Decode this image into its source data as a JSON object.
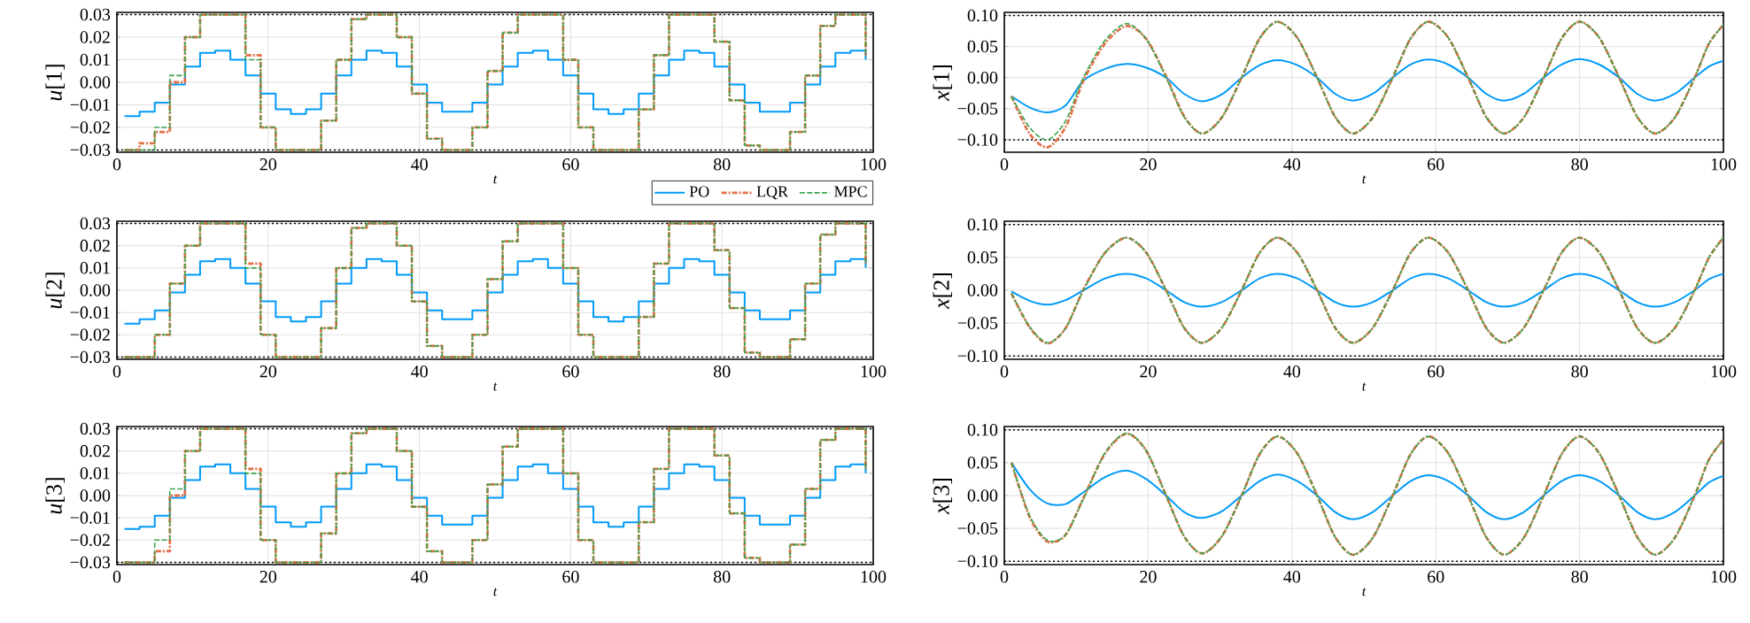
{
  "chart_data": [
    {
      "type": "step",
      "xlabel": "t",
      "ylabel": "*u*[1]",
      "xlim": [
        0,
        100
      ],
      "xticks": [
        0,
        20,
        40,
        60,
        80,
        100
      ],
      "ylim": [
        -0.031,
        0.031
      ],
      "yticks": [
        {
          "value": -0.03,
          "label": "−0.03"
        },
        {
          "value": -0.02,
          "label": "−0.02"
        },
        {
          "value": -0.01,
          "label": "−0.01"
        },
        {
          "value": 0,
          "label": "0.00"
        },
        0.01,
        0.02,
        0.03
      ],
      "grid": true,
      "legend": "bottom right",
      "marker": "none",
      "ref_lines": [
        {
          "axis": "y",
          "value": 0.03,
          "line_style": "dotted",
          "color": "#000000"
        },
        {
          "axis": "y",
          "value": -0.03,
          "line_style": "dotted",
          "color": "#000000"
        }
      ],
      "x": [
        1,
        3,
        5,
        7,
        9,
        11,
        13,
        15,
        17,
        19,
        21,
        23,
        25,
        27,
        29,
        31,
        33,
        35,
        37,
        39,
        41,
        43,
        45,
        47,
        49,
        51,
        53,
        55,
        57,
        59,
        61,
        63,
        65,
        67,
        69,
        71,
        73,
        75,
        77,
        79,
        81,
        83,
        85,
        87,
        89,
        91,
        93,
        95,
        97,
        99
      ],
      "series": [
        {
          "name": "PO",
          "color": "#009af9",
          "line_style": "solid",
          "values": [
            -0.015,
            -0.013,
            -0.009,
            -0.001,
            0.007,
            0.013,
            0.014,
            0.01,
            0.003,
            -0.005,
            -0.012,
            -0.014,
            -0.012,
            -0.005,
            0.003,
            0.01,
            0.014,
            0.013,
            0.007,
            -0.001,
            -0.009,
            -0.013,
            -0.013,
            -0.009,
            -0.001,
            0.007,
            0.013,
            0.014,
            0.01,
            0.003,
            -0.005,
            -0.012,
            -0.014,
            -0.012,
            -0.005,
            0.003,
            0.01,
            0.014,
            0.013,
            0.007,
            -0.001,
            -0.009,
            -0.013,
            -0.013,
            -0.009,
            -0.001,
            0.007,
            0.013,
            0.014,
            0.01
          ]
        },
        {
          "name": "LQR",
          "color": "#e26f46",
          "line_style": "dashdot",
          "values": [
            -0.03,
            -0.027,
            -0.022,
            0.0,
            0.02,
            0.03,
            0.03,
            0.03,
            0.012,
            -0.02,
            -0.03,
            -0.03,
            -0.03,
            -0.017,
            0.01,
            0.028,
            0.03,
            0.03,
            0.02,
            -0.005,
            -0.025,
            -0.03,
            -0.03,
            -0.02,
            0.005,
            0.022,
            0.03,
            0.03,
            0.03,
            0.01,
            -0.02,
            -0.03,
            -0.03,
            -0.03,
            -0.012,
            0.012,
            0.03,
            0.03,
            0.03,
            0.018,
            -0.008,
            -0.028,
            -0.03,
            -0.03,
            -0.022,
            0.003,
            0.025,
            0.03,
            0.03,
            0.012
          ]
        },
        {
          "name": "MPC",
          "color": "#3da44d",
          "line_style": "dashed",
          "values": [
            -0.03,
            -0.03,
            -0.02,
            0.003,
            0.02,
            0.03,
            0.03,
            0.03,
            0.01,
            -0.02,
            -0.03,
            -0.03,
            -0.03,
            -0.017,
            0.01,
            0.028,
            0.03,
            0.03,
            0.02,
            -0.005,
            -0.025,
            -0.03,
            -0.03,
            -0.02,
            0.005,
            0.022,
            0.03,
            0.03,
            0.03,
            0.01,
            -0.02,
            -0.03,
            -0.03,
            -0.03,
            -0.012,
            0.012,
            0.03,
            0.03,
            0.03,
            0.018,
            -0.008,
            -0.028,
            -0.03,
            -0.03,
            -0.022,
            0.003,
            0.025,
            0.03,
            0.03,
            0.012
          ]
        }
      ]
    },
    {
      "type": "line",
      "xlabel": "t",
      "ylabel": "*x*[1]",
      "xlim": [
        0,
        100
      ],
      "xticks": [
        0,
        20,
        40,
        60,
        80,
        100
      ],
      "ylim": [
        -0.12,
        0.105
      ],
      "yticks": [
        {
          "value": -0.1,
          "label": "−0.10"
        },
        {
          "value": -0.05,
          "label": "−0.05"
        },
        {
          "value": 0,
          "label": "0.00"
        },
        0.05,
        {
          "value": 0.1,
          "label": "0.10"
        }
      ],
      "grid": true,
      "marker": "none",
      "ref_lines": [
        {
          "axis": "y",
          "value": 0.1,
          "line_style": "dotted",
          "color": "#000000"
        },
        {
          "axis": "y",
          "value": -0.1,
          "line_style": "dotted",
          "color": "#000000"
        }
      ],
      "x": [
        1,
        3.5,
        6,
        8.5,
        11,
        14,
        17,
        19.75,
        22.5,
        25,
        27.5,
        30.25,
        33,
        35.5,
        38,
        40.75,
        43.5,
        46,
        48.5,
        51.25,
        54,
        56.5,
        59,
        61.75,
        64.5,
        67,
        69.5,
        72.25,
        75,
        77.5,
        80,
        82.75,
        85.5,
        88,
        90.5,
        93.25,
        96,
        98,
        100
      ],
      "series": [
        {
          "color": "#009af9",
          "line_style": "solid",
          "values": [
            -0.03,
            -0.048,
            -0.056,
            -0.045,
            -0.005,
            0.014,
            0.022,
            0.016,
            0.0,
            -0.026,
            -0.038,
            -0.027,
            0.0,
            0.02,
            0.028,
            0.02,
            0.0,
            -0.026,
            -0.037,
            -0.026,
            0.0,
            0.021,
            0.029,
            0.021,
            0.0,
            -0.026,
            -0.037,
            -0.026,
            0.0,
            0.021,
            0.03,
            0.021,
            0.0,
            -0.026,
            -0.037,
            -0.026,
            0.0,
            0.018,
            0.027
          ]
        },
        {
          "color": "#e26f46",
          "line_style": "dashdot",
          "values": [
            -0.03,
            -0.09,
            -0.112,
            -0.08,
            -0.005,
            0.055,
            0.083,
            0.062,
            0.002,
            -0.062,
            -0.09,
            -0.064,
            0.0,
            0.063,
            0.09,
            0.064,
            0.0,
            -0.063,
            -0.09,
            -0.064,
            0.0,
            0.063,
            0.09,
            0.064,
            0.0,
            -0.063,
            -0.09,
            -0.064,
            0.0,
            0.063,
            0.09,
            0.064,
            0.0,
            -0.063,
            -0.09,
            -0.064,
            0.0,
            0.055,
            0.085
          ]
        },
        {
          "color": "#3da44d",
          "line_style": "dashed",
          "values": [
            -0.03,
            -0.08,
            -0.1,
            -0.07,
            0.0,
            0.06,
            0.087,
            0.062,
            0.0,
            -0.063,
            -0.09,
            -0.064,
            0.0,
            0.063,
            0.09,
            0.064,
            0.0,
            -0.063,
            -0.09,
            -0.064,
            0.0,
            0.063,
            0.09,
            0.064,
            0.0,
            -0.063,
            -0.09,
            -0.064,
            0.0,
            0.063,
            0.09,
            0.064,
            0.0,
            -0.063,
            -0.09,
            -0.064,
            0.0,
            0.055,
            0.085
          ]
        }
      ]
    },
    {
      "type": "step",
      "xlabel": "t",
      "ylabel": "*u*[2]",
      "xlim": [
        0,
        100
      ],
      "xticks": [
        0,
        20,
        40,
        60,
        80,
        100
      ],
      "ylim": [
        -0.031,
        0.031
      ],
      "yticks": [
        {
          "value": -0.03,
          "label": "−0.03"
        },
        {
          "value": -0.02,
          "label": "−0.02"
        },
        {
          "value": -0.01,
          "label": "−0.01"
        },
        {
          "value": 0,
          "label": "0.00"
        },
        0.01,
        0.02,
        0.03
      ],
      "grid": true,
      "marker": "none",
      "ref_lines": [
        {
          "axis": "y",
          "value": 0.03,
          "line_style": "dotted",
          "color": "#000000"
        },
        {
          "axis": "y",
          "value": -0.03,
          "line_style": "dotted",
          "color": "#000000"
        }
      ],
      "x": [
        1,
        3,
        5,
        7,
        9,
        11,
        13,
        15,
        17,
        19,
        21,
        23,
        25,
        27,
        29,
        31,
        33,
        35,
        37,
        39,
        41,
        43,
        45,
        47,
        49,
        51,
        53,
        55,
        57,
        59,
        61,
        63,
        65,
        67,
        69,
        71,
        73,
        75,
        77,
        79,
        81,
        83,
        85,
        87,
        89,
        91,
        93,
        95,
        97,
        99
      ],
      "series": [
        {
          "color": "#009af9",
          "line_style": "solid",
          "values": [
            -0.015,
            -0.013,
            -0.009,
            -0.001,
            0.007,
            0.013,
            0.014,
            0.01,
            0.003,
            -0.005,
            -0.012,
            -0.014,
            -0.012,
            -0.005,
            0.003,
            0.01,
            0.014,
            0.013,
            0.007,
            -0.001,
            -0.009,
            -0.013,
            -0.013,
            -0.009,
            -0.001,
            0.007,
            0.013,
            0.014,
            0.01,
            0.003,
            -0.005,
            -0.012,
            -0.014,
            -0.012,
            -0.005,
            0.003,
            0.01,
            0.014,
            0.013,
            0.007,
            -0.001,
            -0.009,
            -0.013,
            -0.013,
            -0.009,
            -0.001,
            0.007,
            0.013,
            0.014,
            0.01
          ]
        },
        {
          "color": "#e26f46",
          "line_style": "dashdot",
          "values": [
            -0.03,
            -0.03,
            -0.02,
            0.003,
            0.02,
            0.03,
            0.03,
            0.03,
            0.012,
            -0.02,
            -0.03,
            -0.03,
            -0.03,
            -0.017,
            0.01,
            0.028,
            0.03,
            0.03,
            0.02,
            -0.005,
            -0.025,
            -0.03,
            -0.03,
            -0.02,
            0.005,
            0.022,
            0.03,
            0.03,
            0.03,
            0.01,
            -0.02,
            -0.03,
            -0.03,
            -0.03,
            -0.012,
            0.012,
            0.03,
            0.03,
            0.03,
            0.018,
            -0.008,
            -0.028,
            -0.03,
            -0.03,
            -0.022,
            0.003,
            0.025,
            0.03,
            0.03,
            0.012
          ]
        },
        {
          "color": "#3da44d",
          "line_style": "dashed",
          "values": [
            -0.03,
            -0.03,
            -0.02,
            0.003,
            0.02,
            0.03,
            0.03,
            0.03,
            0.01,
            -0.02,
            -0.03,
            -0.03,
            -0.03,
            -0.017,
            0.01,
            0.028,
            0.03,
            0.03,
            0.02,
            -0.005,
            -0.025,
            -0.03,
            -0.03,
            -0.02,
            0.005,
            0.022,
            0.03,
            0.03,
            0.03,
            0.01,
            -0.02,
            -0.03,
            -0.03,
            -0.03,
            -0.012,
            0.012,
            0.03,
            0.03,
            0.03,
            0.018,
            -0.008,
            -0.028,
            -0.03,
            -0.03,
            -0.022,
            0.003,
            0.025,
            0.03,
            0.03,
            0.012
          ]
        }
      ]
    },
    {
      "type": "line",
      "xlabel": "t",
      "ylabel": "*x*[2]",
      "xlim": [
        0,
        100
      ],
      "xticks": [
        0,
        20,
        40,
        60,
        80,
        100
      ],
      "ylim": [
        -0.105,
        0.105
      ],
      "yticks": [
        {
          "value": -0.1,
          "label": "−0.10"
        },
        {
          "value": -0.05,
          "label": "−0.05"
        },
        {
          "value": 0,
          "label": "0.00"
        },
        0.05,
        {
          "value": 0.1,
          "label": "0.10"
        }
      ],
      "grid": true,
      "marker": "none",
      "ref_lines": [
        {
          "axis": "y",
          "value": 0.1,
          "line_style": "dotted",
          "color": "#000000"
        },
        {
          "axis": "y",
          "value": -0.1,
          "line_style": "dotted",
          "color": "#000000"
        }
      ],
      "x": [
        1,
        3.5,
        6,
        8.5,
        11,
        14,
        17,
        19.75,
        22.5,
        25,
        27.5,
        30.25,
        33,
        35.5,
        38,
        40.75,
        43.5,
        46,
        48.5,
        51.25,
        54,
        56.5,
        59,
        61.75,
        64.5,
        67,
        69.5,
        72.25,
        75,
        77.5,
        80,
        82.75,
        85.5,
        88,
        90.5,
        93.25,
        96,
        98,
        100
      ],
      "series": [
        {
          "color": "#009af9",
          "line_style": "solid",
          "values": [
            -0.002,
            -0.016,
            -0.022,
            -0.015,
            0.0,
            0.018,
            0.025,
            0.018,
            0.0,
            -0.018,
            -0.025,
            -0.018,
            0.0,
            0.018,
            0.025,
            0.018,
            0.0,
            -0.018,
            -0.025,
            -0.018,
            0.0,
            0.018,
            0.025,
            0.018,
            0.0,
            -0.018,
            -0.025,
            -0.018,
            0.0,
            0.018,
            0.025,
            0.018,
            0.0,
            -0.018,
            -0.025,
            -0.018,
            0.0,
            0.017,
            0.025
          ]
        },
        {
          "color": "#e26f46",
          "line_style": "dashdot",
          "values": [
            -0.005,
            -0.056,
            -0.081,
            -0.058,
            0.001,
            0.057,
            0.08,
            0.057,
            0.0,
            -0.057,
            -0.08,
            -0.057,
            0.0,
            0.057,
            0.08,
            0.057,
            0.0,
            -0.057,
            -0.08,
            -0.057,
            0.0,
            0.057,
            0.08,
            0.057,
            0.0,
            -0.057,
            -0.08,
            -0.057,
            0.0,
            0.057,
            0.08,
            0.057,
            0.0,
            -0.057,
            -0.08,
            -0.057,
            0.0,
            0.05,
            0.08
          ]
        },
        {
          "color": "#3da44d",
          "line_style": "dashed",
          "values": [
            -0.005,
            -0.055,
            -0.08,
            -0.058,
            0.0,
            0.057,
            0.08,
            0.057,
            0.0,
            -0.057,
            -0.08,
            -0.057,
            0.0,
            0.057,
            0.08,
            0.057,
            0.0,
            -0.057,
            -0.08,
            -0.057,
            0.0,
            0.057,
            0.08,
            0.057,
            0.0,
            -0.057,
            -0.08,
            -0.057,
            0.0,
            0.057,
            0.08,
            0.057,
            0.0,
            -0.057,
            -0.08,
            -0.057,
            0.0,
            0.05,
            0.08
          ]
        }
      ]
    },
    {
      "type": "step",
      "xlabel": "t",
      "ylabel": "*u*[3]",
      "xlim": [
        0,
        100
      ],
      "xticks": [
        0,
        20,
        40,
        60,
        80,
        100
      ],
      "ylim": [
        -0.031,
        0.031
      ],
      "yticks": [
        {
          "value": -0.03,
          "label": "−0.03"
        },
        {
          "value": -0.02,
          "label": "−0.02"
        },
        {
          "value": -0.01,
          "label": "−0.01"
        },
        {
          "value": 0,
          "label": "0.00"
        },
        0.01,
        0.02,
        0.03
      ],
      "grid": true,
      "marker": "none",
      "ref_lines": [
        {
          "axis": "y",
          "value": 0.03,
          "line_style": "dotted",
          "color": "#000000"
        },
        {
          "axis": "y",
          "value": -0.03,
          "line_style": "dotted",
          "color": "#000000"
        }
      ],
      "x": [
        1,
        3,
        5,
        7,
        9,
        11,
        13,
        15,
        17,
        19,
        21,
        23,
        25,
        27,
        29,
        31,
        33,
        35,
        37,
        39,
        41,
        43,
        45,
        47,
        49,
        51,
        53,
        55,
        57,
        59,
        61,
        63,
        65,
        67,
        69,
        71,
        73,
        75,
        77,
        79,
        81,
        83,
        85,
        87,
        89,
        91,
        93,
        95,
        97,
        99
      ],
      "series": [
        {
          "color": "#009af9",
          "line_style": "solid",
          "values": [
            -0.015,
            -0.014,
            -0.009,
            -0.001,
            0.007,
            0.013,
            0.014,
            0.01,
            0.003,
            -0.005,
            -0.012,
            -0.014,
            -0.012,
            -0.005,
            0.003,
            0.01,
            0.014,
            0.013,
            0.007,
            -0.001,
            -0.009,
            -0.013,
            -0.013,
            -0.009,
            -0.001,
            0.007,
            0.013,
            0.014,
            0.01,
            0.003,
            -0.005,
            -0.012,
            -0.014,
            -0.012,
            -0.005,
            0.003,
            0.01,
            0.014,
            0.013,
            0.007,
            -0.001,
            -0.009,
            -0.013,
            -0.013,
            -0.009,
            -0.001,
            0.007,
            0.013,
            0.014,
            0.01
          ]
        },
        {
          "color": "#e26f46",
          "line_style": "dashdot",
          "values": [
            -0.03,
            -0.03,
            -0.025,
            0.0,
            0.02,
            0.03,
            0.03,
            0.03,
            0.012,
            -0.02,
            -0.03,
            -0.03,
            -0.03,
            -0.017,
            0.01,
            0.028,
            0.03,
            0.03,
            0.02,
            -0.005,
            -0.025,
            -0.03,
            -0.03,
            -0.02,
            0.005,
            0.022,
            0.03,
            0.03,
            0.03,
            0.01,
            -0.02,
            -0.03,
            -0.03,
            -0.03,
            -0.012,
            0.012,
            0.03,
            0.03,
            0.03,
            0.018,
            -0.008,
            -0.028,
            -0.03,
            -0.03,
            -0.022,
            0.003,
            0.025,
            0.03,
            0.03,
            0.012
          ]
        },
        {
          "color": "#3da44d",
          "line_style": "dashed",
          "values": [
            -0.03,
            -0.03,
            -0.02,
            0.003,
            0.02,
            0.03,
            0.03,
            0.03,
            0.01,
            -0.02,
            -0.03,
            -0.03,
            -0.03,
            -0.017,
            0.01,
            0.028,
            0.03,
            0.03,
            0.02,
            -0.005,
            -0.025,
            -0.03,
            -0.03,
            -0.02,
            0.005,
            0.022,
            0.03,
            0.03,
            0.03,
            0.01,
            -0.02,
            -0.03,
            -0.03,
            -0.03,
            -0.012,
            0.012,
            0.03,
            0.03,
            0.03,
            0.018,
            -0.008,
            -0.028,
            -0.03,
            -0.03,
            -0.022,
            0.003,
            0.025,
            0.03,
            0.03,
            0.012
          ]
        }
      ]
    },
    {
      "type": "line",
      "xlabel": "t",
      "ylabel": "*x*[3]",
      "xlim": [
        0,
        100
      ],
      "xticks": [
        0,
        20,
        40,
        60,
        80,
        100
      ],
      "ylim": [
        -0.105,
        0.105
      ],
      "yticks": [
        {
          "value": -0.1,
          "label": "−0.10"
        },
        {
          "value": -0.05,
          "label": "−0.05"
        },
        {
          "value": 0,
          "label": "0.00"
        },
        0.05,
        {
          "value": 0.1,
          "label": "0.10"
        }
      ],
      "grid": true,
      "marker": "none",
      "ref_lines": [
        {
          "axis": "y",
          "value": 0.1,
          "line_style": "dotted",
          "color": "#000000"
        },
        {
          "axis": "y",
          "value": -0.1,
          "line_style": "dotted",
          "color": "#000000"
        }
      ],
      "x": [
        1,
        3.5,
        6,
        8.5,
        11,
        14,
        17,
        19.75,
        22.5,
        25,
        27.5,
        30.25,
        33,
        35.5,
        38,
        40.75,
        43.5,
        46,
        48.5,
        51.25,
        54,
        56.5,
        59,
        61.75,
        64.5,
        67,
        69.5,
        72.25,
        75,
        77.5,
        80,
        82.75,
        85.5,
        88,
        90.5,
        93.25,
        96,
        98,
        100
      ],
      "series": [
        {
          "color": "#009af9",
          "line_style": "solid",
          "values": [
            0.05,
            0.01,
            -0.012,
            -0.013,
            0.005,
            0.028,
            0.038,
            0.025,
            0.0,
            -0.025,
            -0.034,
            -0.024,
            0.0,
            0.022,
            0.032,
            0.022,
            0.0,
            -0.025,
            -0.036,
            -0.025,
            0.0,
            0.022,
            0.031,
            0.022,
            0.0,
            -0.025,
            -0.036,
            -0.025,
            0.0,
            0.022,
            0.031,
            0.022,
            0.0,
            -0.025,
            -0.036,
            -0.025,
            0.0,
            0.02,
            0.03
          ]
        },
        {
          "color": "#e26f46",
          "line_style": "dashdot",
          "values": [
            0.05,
            -0.032,
            -0.07,
            -0.06,
            -0.004,
            0.064,
            0.094,
            0.068,
            0.0,
            -0.062,
            -0.088,
            -0.062,
            0.0,
            0.063,
            0.09,
            0.064,
            0.0,
            -0.063,
            -0.09,
            -0.064,
            0.0,
            0.063,
            0.09,
            0.064,
            0.0,
            -0.063,
            -0.09,
            -0.064,
            0.0,
            0.063,
            0.09,
            0.064,
            0.0,
            -0.063,
            -0.09,
            -0.064,
            0.0,
            0.055,
            0.085
          ]
        },
        {
          "color": "#3da44d",
          "line_style": "dashed",
          "values": [
            0.05,
            -0.03,
            -0.068,
            -0.06,
            -0.005,
            0.065,
            0.095,
            0.068,
            0.0,
            -0.062,
            -0.088,
            -0.062,
            0.0,
            0.063,
            0.09,
            0.064,
            0.0,
            -0.063,
            -0.09,
            -0.064,
            0.0,
            0.063,
            0.09,
            0.064,
            0.0,
            -0.063,
            -0.09,
            -0.064,
            0.0,
            0.063,
            0.09,
            0.064,
            0.0,
            -0.063,
            -0.09,
            -0.064,
            0.0,
            0.055,
            0.085
          ]
        }
      ]
    }
  ]
}
